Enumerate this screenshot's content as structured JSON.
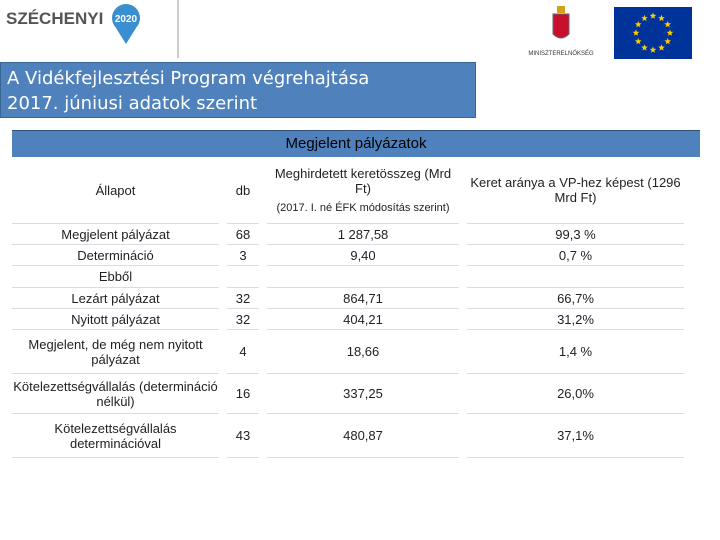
{
  "header": {
    "logo": "SZÉCHENYI",
    "logo_year": "2020",
    "ministry": "MINISZTERELNÖKSÉG"
  },
  "title": {
    "line1": "A Vidékfejlesztési Program végrehajtása",
    "line2": "2017. júniusi adatok szerint"
  },
  "table": {
    "caption": "Megjelent pályázatok",
    "columns": [
      "Állapot",
      "db",
      "Meghirdetett keretösszeg (Mrd Ft)",
      "Keret aránya a VP-hez képest (1296 Mrd Ft)"
    ],
    "column_note": "(2017. I. né ÉFK módosítás szerint)",
    "rows": [
      [
        "Megjelent pályázat",
        "68",
        "1 287,58",
        "99,3 %"
      ],
      [
        "Determináció",
        "3",
        "9,40",
        "0,7 %"
      ],
      [
        "Ebből"
      ],
      [
        "Lezárt pályázat",
        "32",
        "864,71",
        "66,7%"
      ],
      [
        "Nyitott pályázat",
        "32",
        "404,21",
        "31,2%"
      ],
      [
        "Megjelent, de még nem nyitott pályázat",
        "4",
        "18,66",
        "1,4 %"
      ],
      [
        "Kötelezettségvállalás (determináció nélkül)",
        "16",
        "337,25",
        "26,0%"
      ],
      [
        "Kötelezettségvállalás determinációval",
        "43",
        "480,87",
        "37,1%"
      ]
    ]
  }
}
